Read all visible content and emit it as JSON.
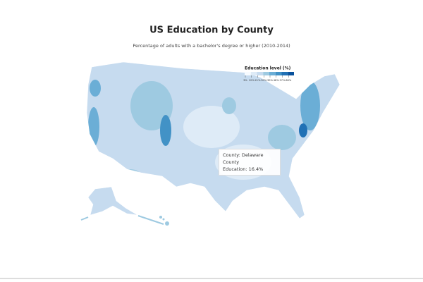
{
  "header": {
    "title": "US Education by County",
    "subtitle": "Percentage of adults with a bachelor's degree or higher (2010-2014)"
  },
  "legend": {
    "title": "Education level (%)",
    "ticks": [
      "3%",
      "12%",
      "21%",
      "30%",
      "39%",
      "48%",
      "57%",
      "66%"
    ],
    "colors": [
      "#f7fbff",
      "#deebf7",
      "#c6dbef",
      "#9ecae1",
      "#6baed6",
      "#4292c6",
      "#2171b5",
      "#08519c"
    ]
  },
  "tooltip": {
    "county": "County: Delaware County",
    "education": "Education: 16.4%"
  }
}
